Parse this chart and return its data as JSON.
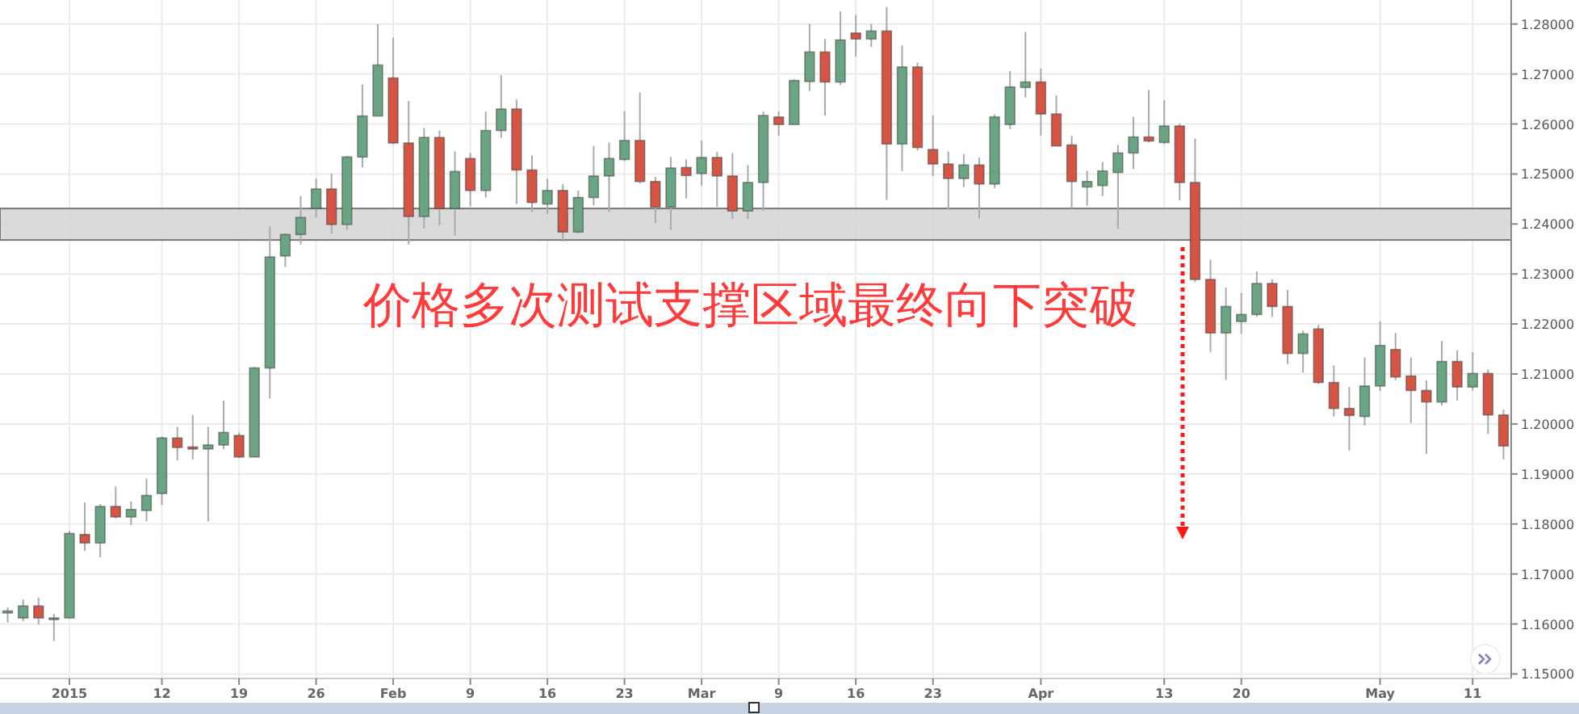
{
  "chart_data": {
    "type": "candlestick",
    "categories": [
      null,
      null,
      null,
      null,
      "2015",
      null,
      null,
      null,
      null,
      null,
      "12",
      null,
      null,
      null,
      null,
      "19",
      null,
      null,
      null,
      null,
      "26",
      null,
      null,
      null,
      null,
      "Feb",
      null,
      null,
      null,
      null,
      "9",
      null,
      null,
      null,
      null,
      "16",
      null,
      null,
      null,
      null,
      "23",
      null,
      null,
      null,
      null,
      "Mar",
      null,
      null,
      null,
      null,
      "9",
      null,
      null,
      null,
      null,
      "16",
      null,
      null,
      null,
      null,
      "23",
      null,
      null,
      null,
      null,
      null,
      null,
      "Apr",
      null,
      null,
      null,
      null,
      null,
      null,
      null,
      "13",
      null,
      null,
      null,
      null,
      "20",
      null,
      null,
      null,
      null,
      null,
      null,
      null,
      null,
      "May",
      null,
      null,
      null,
      null,
      null,
      "11",
      null,
      null
    ],
    "ohlc": [
      [
        1.1622,
        1.1633,
        1.1603,
        1.1626
      ],
      [
        1.1612,
        1.1649,
        1.1606,
        1.1636
      ],
      [
        1.1636,
        1.1653,
        1.1599,
        1.1612
      ],
      [
        1.1612,
        1.162,
        1.1566,
        1.1612
      ],
      [
        1.1612,
        1.1786,
        1.1612,
        1.1781
      ],
      [
        1.1779,
        1.1843,
        1.1746,
        1.1762
      ],
      [
        1.1762,
        1.184,
        1.1733,
        1.1835
      ],
      [
        1.1835,
        1.1875,
        1.1811,
        1.1814
      ],
      [
        1.1814,
        1.1845,
        1.1798,
        1.1829
      ],
      [
        1.1827,
        1.1891,
        1.1805,
        1.1857
      ],
      [
        1.1861,
        1.1975,
        1.1838,
        1.1972
      ],
      [
        1.1972,
        1.1994,
        1.1927,
        1.1953
      ],
      [
        1.1954,
        1.2018,
        1.1929,
        1.195
      ],
      [
        1.195,
        1.1994,
        1.1805,
        1.1958
      ],
      [
        1.1958,
        1.2047,
        1.195,
        1.1983
      ],
      [
        1.1977,
        1.1983,
        1.1932,
        1.1934
      ],
      [
        1.1934,
        1.2114,
        1.1934,
        1.2112
      ],
      [
        1.2112,
        1.2395,
        1.2051,
        1.2334
      ],
      [
        1.2336,
        1.2381,
        1.2314,
        1.2379
      ],
      [
        1.2379,
        1.2456,
        1.2359,
        1.2413
      ],
      [
        1.2431,
        1.2491,
        1.2413,
        1.247
      ],
      [
        1.247,
        1.2501,
        1.2381,
        1.2399
      ],
      [
        1.2399,
        1.2536,
        1.2388,
        1.2534
      ],
      [
        1.2534,
        1.2679,
        1.2513,
        1.2616
      ],
      [
        1.2616,
        1.28,
        1.2616,
        1.2718
      ],
      [
        1.2692,
        1.2773,
        1.256,
        1.2562
      ],
      [
        1.2562,
        1.2646,
        1.2359,
        1.2415
      ],
      [
        1.2415,
        1.2592,
        1.2391,
        1.2573
      ],
      [
        1.2573,
        1.2587,
        1.2397,
        1.2431
      ],
      [
        1.2431,
        1.2545,
        1.2377,
        1.2505
      ],
      [
        1.2531,
        1.2542,
        1.2435,
        1.2467
      ],
      [
        1.2467,
        1.2625,
        1.2453,
        1.2587
      ],
      [
        1.2587,
        1.2698,
        1.2572,
        1.263
      ],
      [
        1.263,
        1.2649,
        1.244,
        1.2508
      ],
      [
        1.2508,
        1.2537,
        1.2424,
        1.2443
      ],
      [
        1.244,
        1.249,
        1.242,
        1.2467
      ],
      [
        1.2467,
        1.248,
        1.2365,
        1.2384
      ],
      [
        1.2384,
        1.2467,
        1.2381,
        1.2453
      ],
      [
        1.2453,
        1.2556,
        1.2437,
        1.2496
      ],
      [
        1.2496,
        1.2563,
        1.2424,
        1.2531
      ],
      [
        1.2529,
        1.2626,
        1.2526,
        1.2567
      ],
      [
        1.2567,
        1.2663,
        1.2481,
        1.2485
      ],
      [
        1.2485,
        1.2494,
        1.2402,
        1.2434
      ],
      [
        1.2434,
        1.2534,
        1.2388,
        1.2512
      ],
      [
        1.2513,
        1.2529,
        1.2451,
        1.2497
      ],
      [
        1.2501,
        1.2567,
        1.2477,
        1.2533
      ],
      [
        1.2533,
        1.2544,
        1.2434,
        1.2496
      ],
      [
        1.2496,
        1.2542,
        1.241,
        1.2426
      ],
      [
        1.2426,
        1.2518,
        1.241,
        1.2483
      ],
      [
        1.2483,
        1.2625,
        1.2426,
        1.2617
      ],
      [
        1.2614,
        1.2625,
        1.2577,
        1.2599
      ],
      [
        1.2599,
        1.2689,
        1.2599,
        1.2687
      ],
      [
        1.2685,
        1.28,
        1.2666,
        1.2744
      ],
      [
        1.2744,
        1.277,
        1.2617,
        1.2684
      ],
      [
        1.2684,
        1.2825,
        1.2678,
        1.2768
      ],
      [
        1.2782,
        1.2818,
        1.2735,
        1.277
      ],
      [
        1.277,
        1.28,
        1.2754,
        1.2786
      ],
      [
        1.2786,
        1.2834,
        1.2448,
        1.256
      ],
      [
        1.256,
        1.2757,
        1.2506,
        1.2714
      ],
      [
        1.2714,
        1.2723,
        1.2547,
        1.2553
      ],
      [
        1.2549,
        1.2617,
        1.2496,
        1.252
      ],
      [
        1.252,
        1.2545,
        1.2429,
        1.2491
      ],
      [
        1.2491,
        1.254,
        1.2474,
        1.2518
      ],
      [
        1.2518,
        1.2533,
        1.2411,
        1.248
      ],
      [
        1.248,
        1.2619,
        1.2472,
        1.2614
      ],
      [
        1.2599,
        1.2706,
        1.259,
        1.2674
      ],
      [
        1.2673,
        1.2784,
        1.2653,
        1.2684
      ],
      [
        1.2684,
        1.2711,
        1.2577,
        1.262
      ],
      [
        1.262,
        1.2657,
        1.2556,
        1.2556
      ],
      [
        1.2558,
        1.2576,
        1.2431,
        1.2485
      ],
      [
        1.2474,
        1.2506,
        1.2437,
        1.2485
      ],
      [
        1.2477,
        1.2524,
        1.2456,
        1.2506
      ],
      [
        1.2503,
        1.2558,
        1.239,
        1.2542
      ],
      [
        1.2542,
        1.2614,
        1.251,
        1.2574
      ],
      [
        1.2574,
        1.2668,
        1.2563,
        1.2566
      ],
      [
        1.2563,
        1.2648,
        1.256,
        1.2596
      ],
      [
        1.2596,
        1.2601,
        1.2447,
        1.2483
      ],
      [
        1.2483,
        1.2571,
        1.2284,
        1.2289
      ],
      [
        1.2289,
        1.2329,
        1.2144,
        1.2182
      ],
      [
        1.2182,
        1.2273,
        1.2088,
        1.2235
      ],
      [
        1.2205,
        1.2262,
        1.218,
        1.2219
      ],
      [
        1.2219,
        1.2305,
        1.2214,
        1.2281
      ],
      [
        1.2281,
        1.2289,
        1.2214,
        1.2235
      ],
      [
        1.2235,
        1.2268,
        1.212,
        1.2141
      ],
      [
        1.2141,
        1.2187,
        1.2103,
        1.218
      ],
      [
        1.219,
        1.2198,
        1.208,
        1.2083
      ],
      [
        1.2083,
        1.2117,
        1.2015,
        1.2031
      ],
      [
        1.2031,
        1.2074,
        1.1947,
        1.2017
      ],
      [
        1.2015,
        1.2133,
        1.1997,
        1.2076
      ],
      [
        1.2076,
        1.2205,
        1.2066,
        1.2157
      ],
      [
        1.2149,
        1.2182,
        1.2088,
        1.2094
      ],
      [
        1.2096,
        1.2133,
        1.2002,
        1.2067
      ],
      [
        1.2067,
        1.2087,
        1.194,
        1.2044
      ],
      [
        1.2044,
        1.2166,
        1.2037,
        1.2125
      ],
      [
        1.2125,
        1.2147,
        1.2047,
        1.2074
      ],
      [
        1.2074,
        1.2144,
        1.2067,
        1.2101
      ],
      [
        1.2101,
        1.2109,
        1.198,
        1.2018
      ],
      [
        1.2018,
        1.2029,
        1.1929,
        1.1956
      ]
    ],
    "colors": [
      "#6aa583",
      "#6aa583",
      "#d65443",
      "#6aa583",
      "#6aa583",
      "#d65443",
      "#6aa583",
      "#d65443",
      "#6aa583",
      "#6aa583",
      "#6aa583",
      "#d65443",
      "#d65443",
      "#6aa583",
      "#6aa583",
      "#d65443",
      "#6aa583",
      "#6aa583",
      "#6aa583",
      "#6aa583",
      "#6aa583",
      "#d65443",
      "#6aa583",
      "#6aa583",
      "#6aa583",
      "#d65443",
      "#d65443",
      "#6aa583",
      "#d65443",
      "#6aa583",
      "#d65443",
      "#6aa583",
      "#6aa583",
      "#d65443",
      "#d65443",
      "#6aa583",
      "#d65443",
      "#6aa583",
      "#6aa583",
      "#6aa583",
      "#6aa583",
      "#d65443",
      "#d65443",
      "#6aa583",
      "#d65443",
      "#6aa583",
      "#d65443",
      "#d65443",
      "#6aa583",
      "#6aa583",
      "#d65443",
      "#6aa583",
      "#6aa583",
      "#d65443",
      "#6aa583",
      "#d65443",
      "#6aa583",
      "#d65443",
      "#6aa583",
      "#d65443",
      "#d65443",
      "#d65443",
      "#6aa583",
      "#d65443",
      "#6aa583",
      "#6aa583",
      "#6aa583",
      "#d65443",
      "#d65443",
      "#d65443",
      "#6aa583",
      "#6aa583",
      "#6aa583",
      "#6aa583",
      "#d65443",
      "#6aa583",
      "#d65443",
      "#d65443",
      "#d65443",
      "#6aa583",
      "#6aa583",
      "#6aa583",
      "#d65443",
      "#d65443",
      "#6aa583",
      "#d65443",
      "#d65443",
      "#d65443",
      "#6aa583",
      "#6aa583",
      "#d65443",
      "#d65443",
      "#d65443",
      "#6aa583",
      "#d65443",
      "#6aa583",
      "#d65443",
      "#d65443"
    ],
    "ylim": [
      1.1491,
      1.2848
    ],
    "yticks": [
      {
        "value": 1.15,
        "label": "1.15000"
      },
      {
        "value": 1.16,
        "label": "1.16000"
      },
      {
        "value": 1.17,
        "label": "1.17000"
      },
      {
        "value": 1.18,
        "label": "1.18000"
      },
      {
        "value": 1.19,
        "label": "1.19000"
      },
      {
        "value": 1.2,
        "label": "1.20000"
      },
      {
        "value": 1.21,
        "label": "1.21000"
      },
      {
        "value": 1.22,
        "label": "1.22000"
      },
      {
        "value": 1.23,
        "label": "1.23000"
      },
      {
        "value": 1.24,
        "label": "1.24000"
      },
      {
        "value": 1.25,
        "label": "1.25000"
      },
      {
        "value": 1.26,
        "label": "1.26000"
      },
      {
        "value": 1.27,
        "label": "1.27000"
      },
      {
        "value": 1.28,
        "label": "1.28000"
      }
    ],
    "grid": true,
    "bands": [
      {
        "axis": "y",
        "from": 1.2368,
        "to": 1.2431,
        "color": "#d3d3d3"
      }
    ],
    "annotations": [
      "价格多次测试支撑区域最终向下突破"
    ]
  }
}
